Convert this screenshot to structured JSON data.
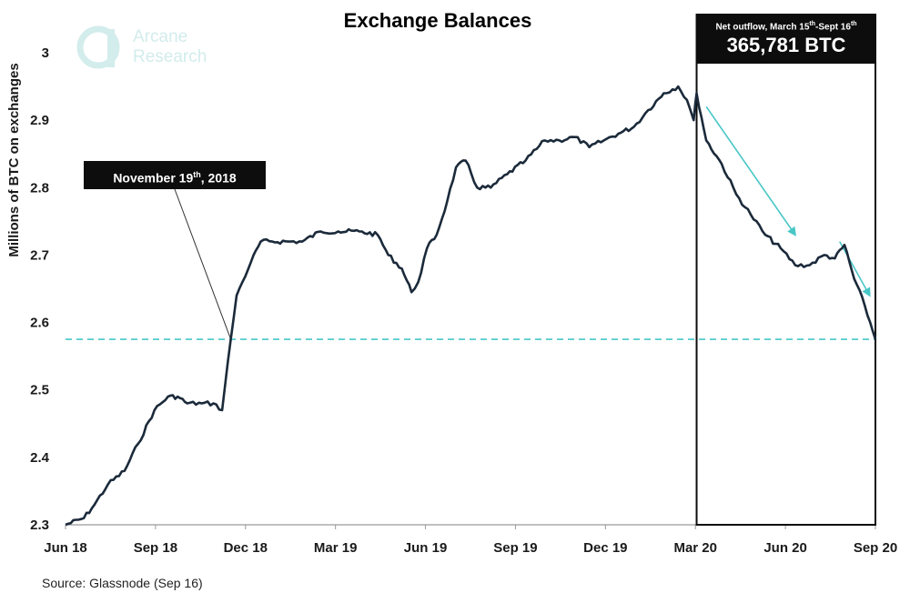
{
  "chart_data": {
    "type": "line",
    "title": "Exchange Balances",
    "ylabel": "Millions of BTC on exchanges",
    "xlabel": "",
    "ylim": [
      2.3,
      3.0
    ],
    "yticks": [
      "2.3",
      "2.4",
      "2.5",
      "2.6",
      "2.7",
      "2.8",
      "2.9",
      "3"
    ],
    "xticks": [
      "Jun 18",
      "Sep 18",
      "Dec 18",
      "Mar 19",
      "Jun 19",
      "Sep 19",
      "Dec 19",
      "Mar 20",
      "Jun 20",
      "Sep 20"
    ],
    "xlim": [
      "2018-06-01",
      "2020-09-16"
    ],
    "grid": false,
    "series": [
      {
        "color": "#1b2a3a",
        "x": [
          "2018-06-01",
          "2018-06-20",
          "2018-07-01",
          "2018-07-15",
          "2018-08-01",
          "2018-08-15",
          "2018-09-01",
          "2018-09-15",
          "2018-09-25",
          "2018-10-05",
          "2018-10-20",
          "2018-11-01",
          "2018-11-10",
          "2018-11-19",
          "2018-11-25",
          "2018-12-01",
          "2018-12-10",
          "2018-12-20",
          "2019-01-01",
          "2019-01-20",
          "2019-02-01",
          "2019-02-20",
          "2019-03-10",
          "2019-04-01",
          "2019-04-20",
          "2019-05-01",
          "2019-05-15",
          "2019-05-25",
          "2019-06-01",
          "2019-06-10",
          "2019-06-20",
          "2019-07-01",
          "2019-07-10",
          "2019-07-20",
          "2019-08-01",
          "2019-08-15",
          "2019-09-01",
          "2019-09-20",
          "2019-10-10",
          "2019-10-25",
          "2019-11-10",
          "2019-11-25",
          "2019-12-10",
          "2019-12-25",
          "2020-01-10",
          "2020-01-25",
          "2020-02-10",
          "2020-02-25",
          "2020-03-05",
          "2020-03-12",
          "2020-03-15",
          "2020-03-25",
          "2020-04-10",
          "2020-04-25",
          "2020-05-10",
          "2020-05-25",
          "2020-06-10",
          "2020-06-25",
          "2020-07-10",
          "2020-07-25",
          "2020-08-05",
          "2020-08-15",
          "2020-08-25",
          "2020-09-05",
          "2020-09-16"
        ],
        "values": [
          2.3,
          2.31,
          2.33,
          2.36,
          2.38,
          2.42,
          2.47,
          2.49,
          2.49,
          2.48,
          2.48,
          2.48,
          2.47,
          2.575,
          2.64,
          2.66,
          2.69,
          2.72,
          2.72,
          2.72,
          2.72,
          2.735,
          2.735,
          2.735,
          2.73,
          2.7,
          2.68,
          2.645,
          2.66,
          2.71,
          2.73,
          2.78,
          2.83,
          2.84,
          2.8,
          2.8,
          2.82,
          2.84,
          2.87,
          2.87,
          2.875,
          2.86,
          2.87,
          2.88,
          2.89,
          2.915,
          2.94,
          2.95,
          2.93,
          2.9,
          2.94,
          2.87,
          2.835,
          2.79,
          2.76,
          2.73,
          2.71,
          2.685,
          2.685,
          2.7,
          2.695,
          2.715,
          2.665,
          2.625,
          2.575
        ]
      }
    ],
    "reference_line": {
      "y": 2.575,
      "style": "dashed",
      "color": "#48c6c6"
    },
    "highlight_box": {
      "x_start": "2020-03-15",
      "x_end": "2020-09-16"
    },
    "annotations": [
      {
        "text": "November 19th, 2018",
        "x": "2018-11-19",
        "y": 2.575
      },
      {
        "text": "Net outflow, March 15th-Sept 16th",
        "value_text": "365,781 BTC"
      }
    ],
    "trend_arrows": [
      {
        "from": [
          "2020-03-25",
          2.92
        ],
        "to": [
          "2020-06-25",
          2.73
        ]
      },
      {
        "from": [
          "2020-08-10",
          2.72
        ],
        "to": [
          "2020-09-10",
          2.64
        ]
      }
    ]
  },
  "callouts": {
    "november": {
      "main": "November 19",
      "sup": "th",
      "tail": ", 2018"
    },
    "net_outflow": {
      "part1": "Net outflow, March 15",
      "sup1": "th",
      "part2": "-Sept 16",
      "sup2": "th",
      "value": "365,781 BTC"
    }
  },
  "logo": {
    "line1": "Arcane",
    "line2": "Research",
    "color": "#d3ecec"
  },
  "source": "Source: Glassnode (Sep 16)",
  "colors": {
    "line": "#1b2a3a",
    "accent": "#48c6c6",
    "callout_bg": "#0d0d0d"
  }
}
